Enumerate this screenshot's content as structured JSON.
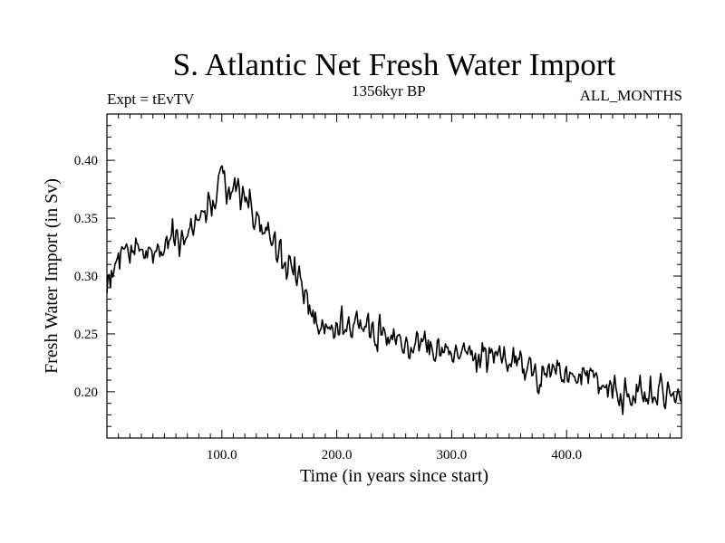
{
  "chart_data": {
    "type": "line",
    "title": "S. Atlantic Net Fresh Water Import",
    "subtitle_left": "Expt = tEvTV",
    "subtitle_center": "1356kyr BP",
    "subtitle_right": "ALL_MONTHS",
    "xlabel": "Time (in years since start)",
    "ylabel": "Fresh Water Import (in Sv)",
    "xlim": [
      0,
      500
    ],
    "ylim": [
      0.16,
      0.44
    ],
    "xticks": [
      100,
      200,
      300,
      400
    ],
    "xtick_labels": [
      "100.0",
      "200.0",
      "300.0",
      "400.0"
    ],
    "yticks": [
      0.2,
      0.25,
      0.3,
      0.35,
      0.4
    ],
    "ytick_labels": [
      "0.20",
      "0.25",
      "0.30",
      "0.35",
      "0.40"
    ],
    "grid": false,
    "series": [
      {
        "name": "Fresh Water Import",
        "trend": {
          "x": [
            0,
            10,
            20,
            40,
            60,
            80,
            95,
            100,
            110,
            130,
            150,
            170,
            185,
            200,
            250,
            300,
            350,
            400,
            450,
            500
          ],
          "y": [
            0.292,
            0.315,
            0.32,
            0.32,
            0.33,
            0.345,
            0.365,
            0.385,
            0.375,
            0.35,
            0.32,
            0.29,
            0.255,
            0.255,
            0.248,
            0.235,
            0.225,
            0.215,
            0.2,
            0.195
          ]
        },
        "noise_amplitude": 0.018,
        "n_points": 500
      }
    ]
  }
}
